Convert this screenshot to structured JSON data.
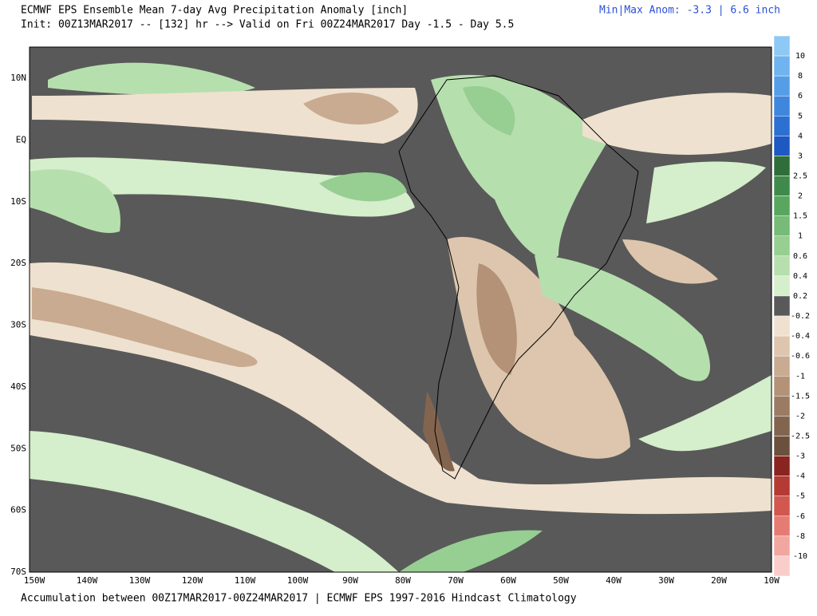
{
  "header": {
    "title": "ECMWF EPS Ensemble Mean 7-day Avg Precipitation Anomaly [inch]",
    "subtitle": "Init: 00Z13MAR2017 -- [132] hr --> Valid on Fri 00Z24MAR2017  Day -1.5 - Day 5.5",
    "minmax": "Min|Max Anom: -3.3 | 6.6 inch"
  },
  "axes": {
    "lat_labels": [
      "10N",
      "EQ",
      "10S",
      "20S",
      "30S",
      "40S",
      "50S",
      "60S",
      "70S"
    ],
    "lon_labels": [
      "150W",
      "140W",
      "130W",
      "120W",
      "110W",
      "100W",
      "90W",
      "80W",
      "70W",
      "60W",
      "50W",
      "40W",
      "30W",
      "20W",
      "10W"
    ]
  },
  "colorbar": {
    "labels": [
      "10",
      "8",
      "6",
      "5",
      "4",
      "3",
      "2.5",
      "2",
      "1.5",
      "1",
      "0.6",
      "0.4",
      "0.2",
      "-0.2",
      "-0.4",
      "-0.6",
      "-1",
      "-1.5",
      "-2",
      "-2.5",
      "-3",
      "-4",
      "-5",
      "-6",
      "-8",
      "-10"
    ],
    "colors": [
      "#8ec8f5",
      "#6fb3ef",
      "#559de6",
      "#3f87dc",
      "#2c70d1",
      "#1d58c3",
      "#2f6e3a",
      "#3f8a4a",
      "#59a65e",
      "#76bb77",
      "#97ce92",
      "#b6dfae",
      "#d5eecb",
      "#595959",
      "#efe1cf",
      "#ddc6ad",
      "#c8ab90",
      "#b39277",
      "#9b7b63",
      "#83654f",
      "#6b503d",
      "#8a2420",
      "#b43a33",
      "#d2574f",
      "#e57c74",
      "#f1a6a0",
      "#f9cdca"
    ]
  },
  "footer": "Accumulation between 00Z17MAR2017-00Z24MAR2017 | ECMWF EPS 1997-2016 Hindcast Climatology"
}
